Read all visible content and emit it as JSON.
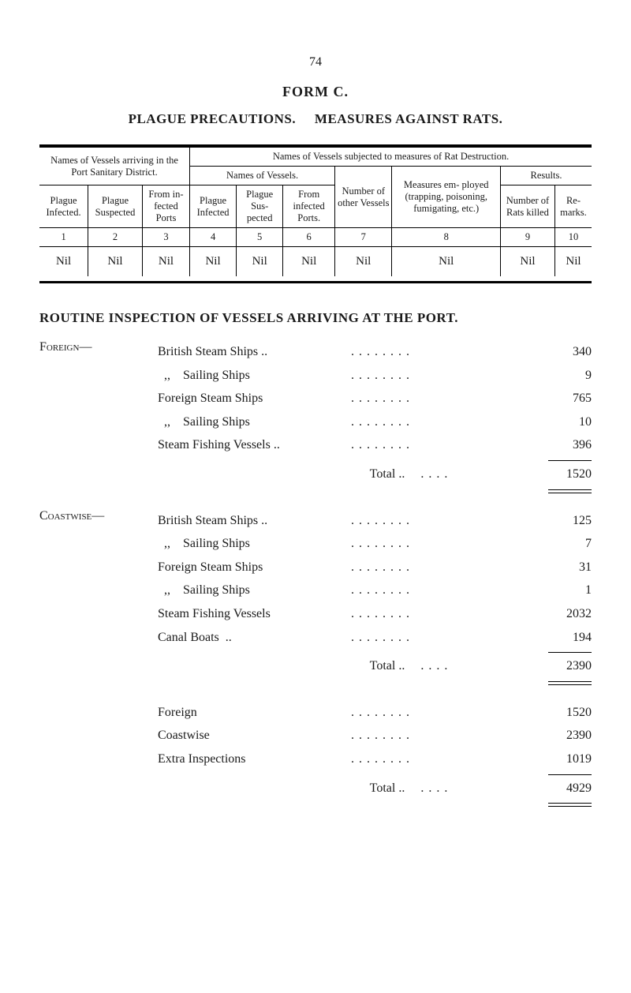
{
  "page_number": "74",
  "form_title": "FORM  C.",
  "subtitle_left": "PLAGUE PRECAUTIONS.",
  "subtitle_right": "MEASURES AGAINST RATS.",
  "table": {
    "top_left": "Names of Vessels arriving in the Port Sanitary District.",
    "top_right": "Names of Vessels subjected to measures of Rat Destruction.",
    "names_of_vessels": "Names of Vessels.",
    "number_other": "Number of other Vessels",
    "measures": "Measures em- ployed (trapping, poisoning, fumigating, etc.)",
    "results": "Results.",
    "cols": [
      "Plague Infected.",
      "Plague Suspected",
      "From in- fected Ports",
      "Plague Infected",
      "Plague Sus- pected",
      "From infected Ports.",
      "Number of Rats killed",
      "Re- marks."
    ],
    "numrow": [
      "1",
      "2",
      "3",
      "4",
      "5",
      "6",
      "7",
      "8",
      "9",
      "10"
    ],
    "nilrow": [
      "Nil",
      "Nil",
      "Nil",
      "Nil",
      "Nil",
      "Nil",
      "Nil",
      "Nil",
      "Nil",
      "Nil"
    ]
  },
  "routine_title": "ROUTINE INSPECTION OF VESSELS ARRIVING AT THE PORT.",
  "foreign": {
    "label": "Foreign—",
    "rows": [
      {
        "label": "British Steam Ships ..",
        "value": "340"
      },
      {
        "label": "  ,,    Sailing Ships",
        "value": "9"
      },
      {
        "label": "Foreign Steam Ships",
        "value": "765"
      },
      {
        "label": "  ,,    Sailing Ships",
        "value": "10"
      },
      {
        "label": "Steam Fishing Vessels ..",
        "value": "396"
      }
    ],
    "total_label": "Total  ..",
    "total": "1520"
  },
  "coastwise": {
    "label": "Coastwise—",
    "rows": [
      {
        "label": "British Steam Ships ..",
        "value": "125"
      },
      {
        "label": "  ,,    Sailing Ships",
        "value": "7"
      },
      {
        "label": "Foreign Steam Ships",
        "value": "31"
      },
      {
        "label": "  ,,    Sailing Ships",
        "value": "1"
      },
      {
        "label": "Steam Fishing Vessels",
        "value": "2032"
      },
      {
        "label": "Canal Boats  ..",
        "value": "194"
      }
    ],
    "total_label": "Total  ..",
    "total": "2390"
  },
  "summary": {
    "rows": [
      {
        "label": "Foreign",
        "value": "1520"
      },
      {
        "label": "Coastwise",
        "value": "2390"
      },
      {
        "label": "Extra Inspections",
        "value": "1019"
      }
    ],
    "total_label": "Total  ..",
    "total": "4929"
  }
}
